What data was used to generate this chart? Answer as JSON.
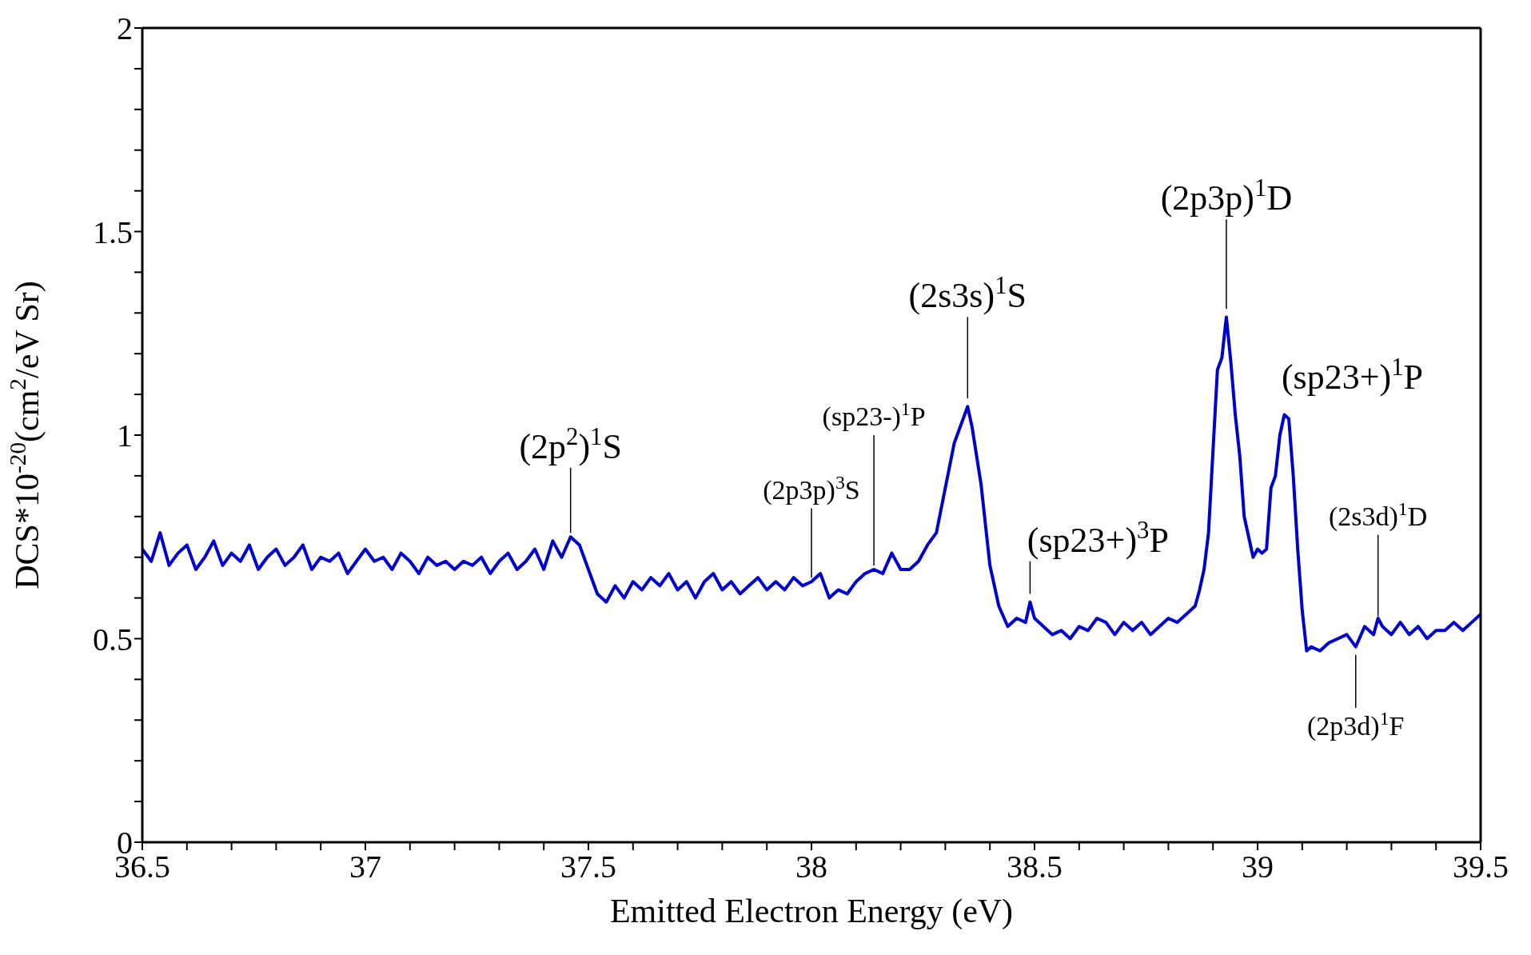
{
  "chart_data": {
    "type": "line",
    "xlabel": "Emitted Electron Energy (eV)",
    "ylabel": "DCS*10$^{-20}$(cm$^{2}$/eV Sr)",
    "xlim": [
      36.5,
      39.5
    ],
    "xticks": [
      36.5,
      {
        "value": 36.6,
        "label": null
      },
      {
        "value": 36.7,
        "label": null
      },
      {
        "value": 36.8,
        "label": null
      },
      {
        "value": 36.9,
        "label": null
      },
      37,
      {
        "value": 37.1,
        "label": null
      },
      {
        "value": 37.2,
        "label": null
      },
      {
        "value": 37.3,
        "label": null
      },
      {
        "value": 37.4,
        "label": null
      },
      37.5,
      {
        "value": 37.6,
        "label": null
      },
      {
        "value": 37.7,
        "label": null
      },
      {
        "value": 37.8,
        "label": null
      },
      {
        "value": 37.9,
        "label": null
      },
      38,
      {
        "value": 38.1,
        "label": null
      },
      {
        "value": 38.2,
        "label": null
      },
      {
        "value": 38.3,
        "label": null
      },
      {
        "value": 38.4,
        "label": null
      },
      38.5,
      {
        "value": 38.6,
        "label": null
      },
      {
        "value": 38.7,
        "label": null
      },
      {
        "value": 38.8,
        "label": null
      },
      {
        "value": 38.9,
        "label": null
      },
      39,
      {
        "value": 39.1,
        "label": null
      },
      {
        "value": 39.2,
        "label": null
      },
      {
        "value": 39.3,
        "label": null
      },
      {
        "value": 39.4,
        "label": null
      },
      39.5
    ],
    "ylim": [
      0,
      2
    ],
    "yticks": [
      0,
      {
        "value": 0.1,
        "label": null
      },
      {
        "value": 0.2,
        "label": null
      },
      {
        "value": 0.3,
        "label": null
      },
      {
        "value": 0.4,
        "label": null
      },
      0.5,
      {
        "value": 0.6,
        "label": null
      },
      {
        "value": 0.7,
        "label": null
      },
      {
        "value": 0.8,
        "label": null
      },
      {
        "value": 0.9,
        "label": null
      },
      1,
      {
        "value": 1.1,
        "label": null
      },
      {
        "value": 1.2,
        "label": null
      },
      {
        "value": 1.3,
        "label": null
      },
      {
        "value": 1.4,
        "label": null
      },
      1.5,
      {
        "value": 1.6,
        "label": null
      },
      {
        "value": 1.7,
        "label": null
      },
      {
        "value": 1.8,
        "label": null
      },
      {
        "value": 1.9,
        "label": null
      },
      2
    ],
    "grid": false,
    "marker": "none",
    "line_style": "solid",
    "series": [
      {
        "color": "#0000cc",
        "x": [
          36.5,
          36.52,
          36.54,
          36.56,
          36.58,
          36.6,
          36.62,
          36.64,
          36.66,
          36.68,
          36.7,
          36.72,
          36.74,
          36.76,
          36.78,
          36.8,
          36.82,
          36.84,
          36.86,
          36.88,
          36.9,
          36.92,
          36.94,
          36.96,
          36.98,
          37,
          37.02,
          37.04,
          37.06,
          37.08,
          37.1,
          37.12,
          37.14,
          37.16,
          37.18,
          37.2,
          37.22,
          37.24,
          37.26,
          37.28,
          37.3,
          37.32,
          37.34,
          37.36,
          37.38,
          37.4,
          37.42,
          37.44,
          37.46,
          37.48,
          37.5,
          37.52,
          37.54,
          37.56,
          37.58,
          37.6,
          37.62,
          37.64,
          37.66,
          37.68,
          37.7,
          37.72,
          37.74,
          37.76,
          37.78,
          37.8,
          37.82,
          37.84,
          37.86,
          37.88,
          37.9,
          37.92,
          37.94,
          37.96,
          37.98,
          38,
          38.02,
          38.04,
          38.06,
          38.08,
          38.1,
          38.12,
          38.14,
          38.16,
          38.18,
          38.2,
          38.22,
          38.24,
          38.26,
          38.28,
          38.3,
          38.32,
          38.34,
          38.35,
          38.36,
          38.38,
          38.4,
          38.42,
          38.44,
          38.46,
          38.48,
          38.49,
          38.5,
          38.52,
          38.54,
          38.56,
          38.58,
          38.6,
          38.62,
          38.64,
          38.66,
          38.68,
          38.7,
          38.72,
          38.74,
          38.76,
          38.78,
          38.8,
          38.82,
          38.84,
          38.86,
          38.87,
          38.88,
          38.89,
          38.9,
          38.91,
          38.92,
          38.93,
          38.94,
          38.95,
          38.96,
          38.97,
          38.98,
          38.99,
          39,
          39.01,
          39.02,
          39.03,
          39.04,
          39.05,
          39.06,
          39.07,
          39.08,
          39.09,
          39.1,
          39.11,
          39.12,
          39.14,
          39.16,
          39.18,
          39.2,
          39.22,
          39.24,
          39.26,
          39.27,
          39.28,
          39.3,
          39.32,
          39.34,
          39.36,
          39.38,
          39.4,
          39.42,
          39.44,
          39.46,
          39.48,
          39.5
        ],
        "values": [
          0.72,
          0.69,
          0.76,
          0.68,
          0.71,
          0.73,
          0.67,
          0.7,
          0.74,
          0.68,
          0.71,
          0.69,
          0.73,
          0.67,
          0.7,
          0.72,
          0.68,
          0.7,
          0.73,
          0.67,
          0.7,
          0.69,
          0.71,
          0.66,
          0.69,
          0.72,
          0.69,
          0.7,
          0.67,
          0.71,
          0.69,
          0.66,
          0.7,
          0.68,
          0.69,
          0.67,
          0.69,
          0.68,
          0.7,
          0.66,
          0.69,
          0.71,
          0.67,
          0.69,
          0.72,
          0.67,
          0.74,
          0.7,
          0.75,
          0.73,
          0.67,
          0.61,
          0.59,
          0.63,
          0.6,
          0.64,
          0.62,
          0.65,
          0.63,
          0.66,
          0.62,
          0.64,
          0.6,
          0.64,
          0.66,
          0.62,
          0.64,
          0.61,
          0.63,
          0.65,
          0.62,
          0.64,
          0.62,
          0.65,
          0.63,
          0.64,
          0.66,
          0.6,
          0.62,
          0.61,
          0.64,
          0.66,
          0.67,
          0.66,
          0.71,
          0.67,
          0.67,
          0.69,
          0.73,
          0.76,
          0.87,
          0.98,
          1.04,
          1.07,
          1.02,
          0.88,
          0.68,
          0.58,
          0.53,
          0.55,
          0.54,
          0.59,
          0.55,
          0.53,
          0.51,
          0.52,
          0.5,
          0.53,
          0.52,
          0.55,
          0.54,
          0.51,
          0.54,
          0.52,
          0.54,
          0.51,
          0.53,
          0.55,
          0.54,
          0.56,
          0.58,
          0.62,
          0.67,
          0.76,
          0.96,
          1.16,
          1.19,
          1.29,
          1.18,
          1.05,
          0.95,
          0.8,
          0.75,
          0.7,
          0.72,
          0.71,
          0.72,
          0.87,
          0.9,
          1.0,
          1.05,
          1.04,
          0.9,
          0.72,
          0.57,
          0.47,
          0.48,
          0.47,
          0.49,
          0.5,
          0.51,
          0.48,
          0.53,
          0.51,
          0.55,
          0.53,
          0.51,
          0.54,
          0.51,
          0.53,
          0.5,
          0.52,
          0.52,
          0.54,
          0.52,
          0.54,
          0.56
        ]
      }
    ],
    "annotations": [
      {
        "text": "(2p$^{2}$)$^{1}$S",
        "x": 37.46,
        "y": 0.75
      },
      {
        "text": "(2p3p)$^{3}$S",
        "x": 38.0,
        "y": 0.64
      },
      {
        "text": "(sp23-)$^{1}$P",
        "x": 38.14,
        "y": 0.67
      },
      {
        "text": "(2s3s)$^{1}$S",
        "x": 38.35,
        "y": 1.07
      },
      {
        "text": "(sp23+)$^{3}$P",
        "x": 38.49,
        "y": 0.6
      },
      {
        "text": "(2p3p)$^{1}$D",
        "x": 38.93,
        "y": 1.29
      },
      {
        "text": "(sp23+)$^{1}$P",
        "x": 39.06,
        "y": 1.05
      },
      {
        "text": "(2s3d)$^{1}$D",
        "x": 39.27,
        "y": 0.55
      },
      {
        "text": "(2p3d)$^{1}$F",
        "x": 39.22,
        "y": 0.48
      }
    ]
  }
}
